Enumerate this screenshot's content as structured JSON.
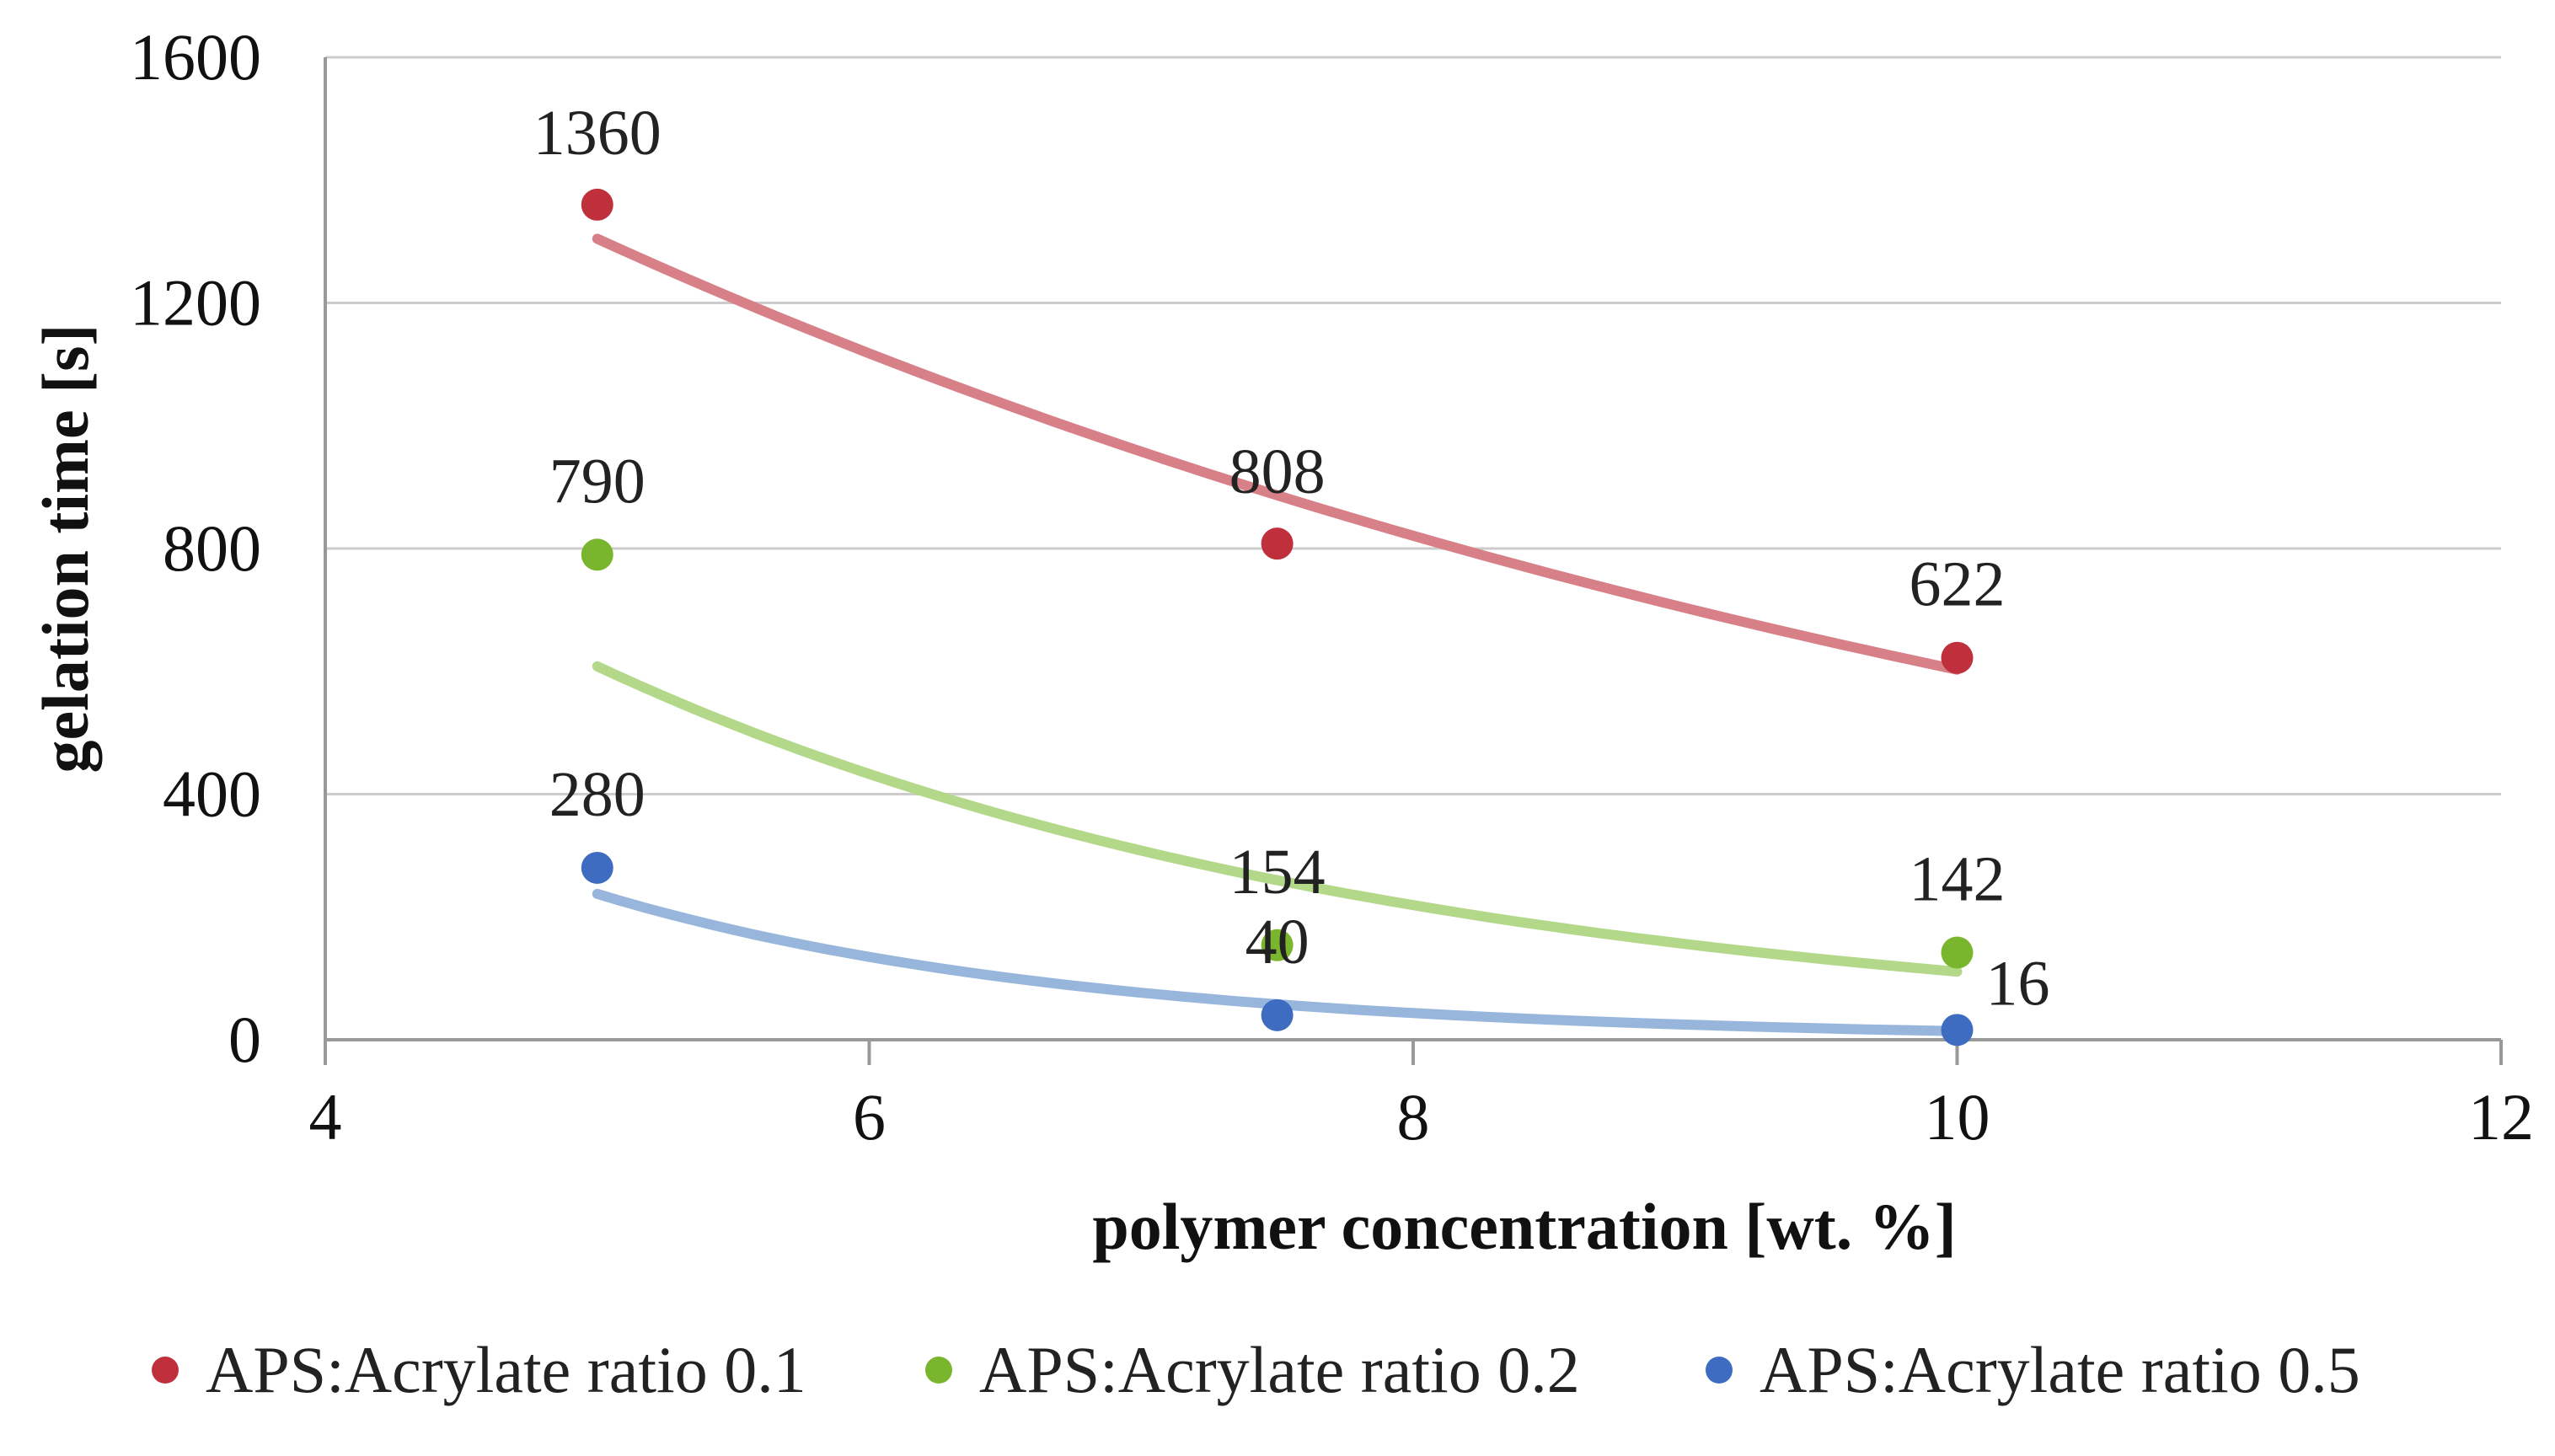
{
  "chart_data": {
    "type": "scatter",
    "title": "",
    "xlabel": "polymer concentration [wt. %]",
    "ylabel": "gelation time [s]",
    "xlim": [
      4,
      12
    ],
    "ylim": [
      0,
      1600
    ],
    "xticks": [
      4,
      6,
      8,
      10,
      12
    ],
    "yticks": [
      0,
      400,
      800,
      1200,
      1600
    ],
    "grid": true,
    "legend_position": "bottom",
    "series": [
      {
        "name": "APS:Acrylate ratio 0.1",
        "color": "#c0303c",
        "trend_color": "#d88088",
        "x": [
          5,
          7.5,
          10
        ],
        "values": [
          1360,
          808,
          622
        ],
        "labels": [
          "1360",
          "808",
          "622"
        ],
        "trendline": {
          "type": "exponential",
          "x": [
            5,
            7.5,
            10
          ],
          "y": [
            1305,
            886,
            603
          ]
        }
      },
      {
        "name": "APS:Acrylate ratio 0.2",
        "color": "#7ab52e",
        "trend_color": "#b4d88a",
        "x": [
          5,
          7.5,
          10
        ],
        "values": [
          790,
          154,
          142
        ],
        "labels": [
          "790",
          "154",
          "142"
        ],
        "trendline": {
          "type": "exponential",
          "x": [
            5,
            7.5,
            10
          ],
          "y": [
            608,
            260,
            111
          ]
        }
      },
      {
        "name": "APS:Acrylate ratio 0.5",
        "color": "#3d6cc0",
        "trend_color": "#98b6dc",
        "x": [
          5,
          7.5,
          10
        ],
        "values": [
          280,
          40,
          16
        ],
        "labels": [
          "280",
          "40",
          "16"
        ],
        "trendline": {
          "type": "exponential",
          "x": [
            5,
            7.5,
            10
          ],
          "y": [
            237,
            58,
            14
          ]
        }
      }
    ]
  }
}
